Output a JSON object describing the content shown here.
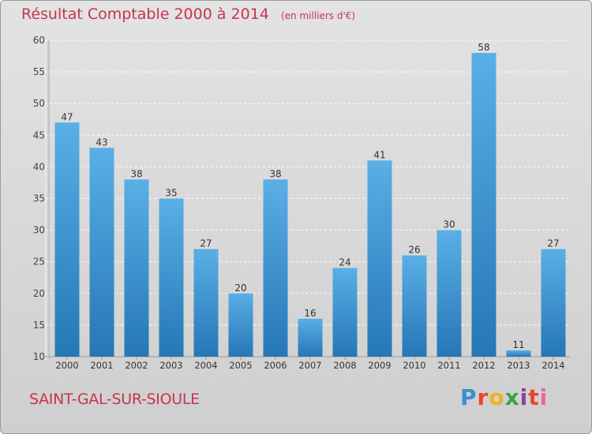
{
  "header": {
    "title": "Résultat Comptable 2000 à 2014",
    "subtitle": "(en milliers d'€)"
  },
  "footer": {
    "town": "SAINT-GAL-SUR-SIOULE",
    "logo": "Proxiti"
  },
  "colors": {
    "accent": "#c8344f",
    "bar_light": "#5aafe6",
    "bar_dark": "#2577b6"
  },
  "chart_data": {
    "type": "bar",
    "title": "Résultat Comptable 2000 à 2014",
    "subtitle": "(en milliers d'€)",
    "categories": [
      "2000",
      "2001",
      "2002",
      "2003",
      "2004",
      "2005",
      "2006",
      "2007",
      "2008",
      "2009",
      "2010",
      "2011",
      "2012",
      "2013",
      "2014"
    ],
    "values": [
      47,
      43,
      38,
      35,
      27,
      20,
      38,
      16,
      24,
      41,
      26,
      30,
      58,
      11,
      27
    ],
    "ylim": [
      10,
      60
    ],
    "yticks": [
      10,
      15,
      20,
      25,
      30,
      35,
      40,
      45,
      50,
      55,
      60
    ],
    "grid": true,
    "data_labels": true
  }
}
